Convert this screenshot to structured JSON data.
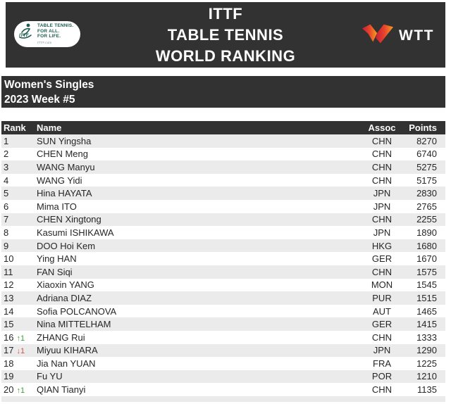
{
  "banner": {
    "title_lines": [
      "ITTF",
      "TABLE TENNIS",
      "WORLD RANKING"
    ],
    "ittf_logo": {
      "lines": [
        "TABLE TENNIS.",
        "FOR ALL.",
        "FOR LIFE."
      ],
      "site": "ITTF.com",
      "abbr": "ITTF"
    },
    "wtt_logo": {
      "text": "WTT"
    }
  },
  "subheader": {
    "line1": "Women's Singles",
    "line2": "2023 Week #5"
  },
  "table": {
    "columns": {
      "rank": "Rank",
      "name": "Name",
      "assoc": "Assoc",
      "points": "Points"
    },
    "rows": [
      {
        "rank": "1",
        "change_text": "",
        "change_dir": "",
        "name": "SUN Yingsha",
        "assoc": "CHN",
        "points": "8270"
      },
      {
        "rank": "2",
        "change_text": "",
        "change_dir": "",
        "name": "CHEN Meng",
        "assoc": "CHN",
        "points": "6740"
      },
      {
        "rank": "3",
        "change_text": "",
        "change_dir": "",
        "name": "WANG Manyu",
        "assoc": "CHN",
        "points": "5275"
      },
      {
        "rank": "4",
        "change_text": "",
        "change_dir": "",
        "name": "WANG Yidi",
        "assoc": "CHN",
        "points": "5175"
      },
      {
        "rank": "5",
        "change_text": "",
        "change_dir": "",
        "name": "Hina HAYATA",
        "assoc": "JPN",
        "points": "2830"
      },
      {
        "rank": "6",
        "change_text": "",
        "change_dir": "",
        "name": "Mima ITO",
        "assoc": "JPN",
        "points": "2765"
      },
      {
        "rank": "7",
        "change_text": "",
        "change_dir": "",
        "name": "CHEN Xingtong",
        "assoc": "CHN",
        "points": "2255"
      },
      {
        "rank": "8",
        "change_text": "",
        "change_dir": "",
        "name": "Kasumi ISHIKAWA",
        "assoc": "JPN",
        "points": "1890"
      },
      {
        "rank": "9",
        "change_text": "",
        "change_dir": "",
        "name": "DOO Hoi Kem",
        "assoc": "HKG",
        "points": "1680"
      },
      {
        "rank": "10",
        "change_text": "",
        "change_dir": "",
        "name": "Ying HAN",
        "assoc": "GER",
        "points": "1670"
      },
      {
        "rank": "11",
        "change_text": "",
        "change_dir": "",
        "name": "FAN Siqi",
        "assoc": "CHN",
        "points": "1575"
      },
      {
        "rank": "12",
        "change_text": "",
        "change_dir": "",
        "name": "Xiaoxin YANG",
        "assoc": "MON",
        "points": "1545"
      },
      {
        "rank": "13",
        "change_text": "",
        "change_dir": "",
        "name": "Adriana DIAZ",
        "assoc": "PUR",
        "points": "1515"
      },
      {
        "rank": "14",
        "change_text": "",
        "change_dir": "",
        "name": "Sofia POLCANOVA",
        "assoc": "AUT",
        "points": "1465"
      },
      {
        "rank": "15",
        "change_text": "",
        "change_dir": "",
        "name": "Nina MITTELHAM",
        "assoc": "GER",
        "points": "1415"
      },
      {
        "rank": "16",
        "change_text": "↑1",
        "change_dir": "up",
        "name": "ZHANG Rui",
        "assoc": "CHN",
        "points": "1333"
      },
      {
        "rank": "17",
        "change_text": "↓1",
        "change_dir": "down",
        "name": "Miyuu KIHARA",
        "assoc": "JPN",
        "points": "1290"
      },
      {
        "rank": "18",
        "change_text": "",
        "change_dir": "",
        "name": "Jia Nan YUAN",
        "assoc": "FRA",
        "points": "1225"
      },
      {
        "rank": "19",
        "change_text": "",
        "change_dir": "",
        "name": "Fu YU",
        "assoc": "POR",
        "points": "1210"
      },
      {
        "rank": "20",
        "change_text": "↑1",
        "change_dir": "up",
        "name": "QIAN Tianyi",
        "assoc": "CHN",
        "points": "1135"
      }
    ]
  },
  "colors": {
    "header_bg": "#323232",
    "row_stripe": "#ebebeb",
    "rank_up": "#3f9e44",
    "rank_down": "#cf5548",
    "ittf_green": "#1d5c4e",
    "wtt_gradient_start": "#c22038",
    "wtt_gradient_mid": "#e8432c",
    "wtt_gradient_end": "#f5a01b"
  }
}
